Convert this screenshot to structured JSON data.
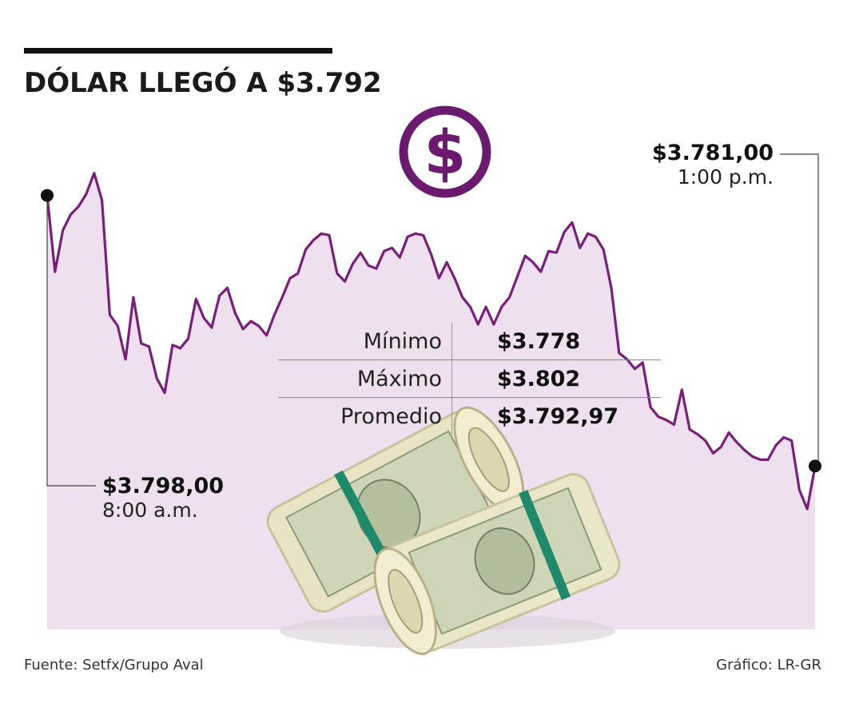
{
  "title": "DÓLAR LLEGÓ A $3.792",
  "annotations": {
    "start": {
      "value": "$3.798,00",
      "time": "8:00 a.m."
    },
    "end": {
      "value": "$3.781,00",
      "time": "1:00 p.m."
    }
  },
  "stats": [
    {
      "label": "Mínimo",
      "value": "$3.778"
    },
    {
      "label": "Máximo",
      "value": "$3.802"
    },
    {
      "label": "Promedio",
      "value": "$3.792,97"
    }
  ],
  "footer": {
    "source": "Fuente: Setfx/Grupo Aval",
    "credit": "Gráfico: LR-GR"
  },
  "icons": {
    "badge": "dollar-sign-icon",
    "photo": "rolled-dollar-bills-icon"
  },
  "colors": {
    "line": "#7a1e7c",
    "area": "#eee0ee",
    "badge": "#6b1a70"
  },
  "chart_data": {
    "type": "area",
    "x_range": [
      "8:00 a.m.",
      "1:00 p.m."
    ],
    "ylim": [
      3776,
      3804
    ],
    "start": 3798.0,
    "end": 3781.0,
    "min": 3778,
    "max": 3802,
    "average": 3792.97,
    "values": [
      3798.0,
      3793.2,
      3795.8,
      3796.8,
      3797.3,
      3798.1,
      3799.4,
      3797.7,
      3790.5,
      3789.8,
      3787.7,
      3791.6,
      3788.7,
      3788.5,
      3786.5,
      3785.6,
      3788.6,
      3788.4,
      3789.0,
      3791.5,
      3790.3,
      3789.7,
      3791.7,
      3792.2,
      3790.6,
      3789.6,
      3790.1,
      3789.8,
      3789.2,
      3790.5,
      3791.6,
      3792.8,
      3793.1,
      3794.6,
      3795.2,
      3795.6,
      3795.5,
      3793.1,
      3792.6,
      3793.7,
      3794.4,
      3793.6,
      3793.4,
      3794.5,
      3794.7,
      3794.1,
      3795.4,
      3795.6,
      3795.5,
      3794.3,
      3792.8,
      3793.8,
      3792.8,
      3791.6,
      3791.0,
      3789.9,
      3791.0,
      3789.9,
      3791.0,
      3791.6,
      3792.9,
      3794.2,
      3793.8,
      3793.2,
      3794.5,
      3794.4,
      3795.7,
      3796.3,
      3794.7,
      3795.6,
      3795.4,
      3794.6,
      3792.2,
      3788.1,
      3787.7,
      3787.1,
      3787.5,
      3784.7,
      3784.1,
      3783.9,
      3783.6,
      3785.8,
      3783.3,
      3783.0,
      3782.6,
      3781.8,
      3782.2,
      3783.1,
      3782.5,
      3782.0,
      3781.6,
      3781.4,
      3781.4,
      3782.3,
      3782.8,
      3782.6,
      3779.5,
      3778.3,
      3781.0
    ]
  }
}
